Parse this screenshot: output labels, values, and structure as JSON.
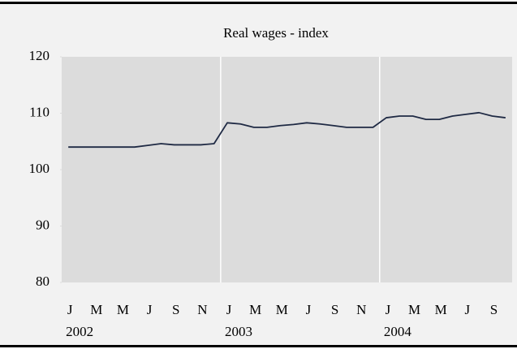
{
  "chart_data": {
    "type": "line",
    "title": "Real wages - index",
    "categories": [
      "J",
      null,
      "M",
      null,
      "M",
      null,
      "J",
      null,
      "S",
      null,
      "N",
      null,
      "J",
      null,
      "M",
      null,
      "M",
      null,
      "J",
      null,
      "S",
      null,
      "N",
      null,
      "J",
      null,
      "M",
      null,
      "M",
      null,
      "J",
      null,
      "S",
      null
    ],
    "year_labels": [
      "2002",
      "2003",
      "2004"
    ],
    "series": [
      {
        "name": "Real wages",
        "color": "#1f2a44",
        "values": [
          104.0,
          104.0,
          104.0,
          104.0,
          104.0,
          104.0,
          104.3,
          104.6,
          104.4,
          104.4,
          104.4,
          104.6,
          108.3,
          108.1,
          107.5,
          107.5,
          107.8,
          108.0,
          108.3,
          108.1,
          107.8,
          107.5,
          107.5,
          107.5,
          109.2,
          109.5,
          109.5,
          108.9,
          108.9,
          109.5,
          109.8,
          110.1,
          109.5,
          109.2
        ]
      }
    ],
    "ylim": [
      80,
      120
    ],
    "yticks": [
      80,
      90,
      100,
      110,
      120
    ]
  }
}
